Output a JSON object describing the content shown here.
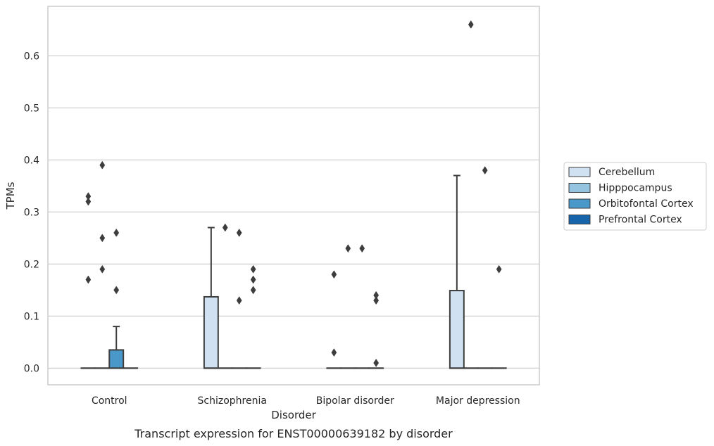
{
  "chart_data": {
    "type": "box",
    "caption": "Transcript expression for ENST00000639182 by disorder",
    "xlabel": "Disorder",
    "ylabel": "TPMs",
    "ylim": [
      -0.032,
      0.695
    ],
    "yticks": [
      "0.0",
      "0.1",
      "0.2",
      "0.3",
      "0.4",
      "0.5",
      "0.6"
    ],
    "ytick_values": [
      0.0,
      0.1,
      0.2,
      0.3,
      0.4,
      0.5,
      0.6
    ],
    "grid": true,
    "legend_position": "right",
    "categories": [
      "Control",
      "Schizophrenia",
      "Bipolar disorder",
      "Major depression"
    ],
    "series": [
      {
        "name": "Cerebellum",
        "color": "#d0e1f2",
        "boxes": [
          {
            "q1": 0,
            "median": 0,
            "q3": 0,
            "whisker_low": 0,
            "whisker_high": 0,
            "outliers": [
              0.17,
              0.32,
              0.33
            ]
          },
          {
            "q1": 0,
            "median": 0,
            "q3": 0.137,
            "whisker_low": 0,
            "whisker_high": 0.27,
            "outliers": []
          },
          {
            "q1": 0,
            "median": 0,
            "q3": 0,
            "whisker_low": 0,
            "whisker_high": 0,
            "outliers": [
              0.03,
              0.18
            ]
          },
          {
            "q1": 0,
            "median": 0,
            "q3": 0.149,
            "whisker_low": 0,
            "whisker_high": 0.37,
            "outliers": []
          }
        ]
      },
      {
        "name": "Hipppocampus",
        "color": "#94c4df",
        "boxes": [
          {
            "q1": 0,
            "median": 0,
            "q3": 0,
            "whisker_low": 0,
            "whisker_high": 0,
            "outliers": [
              0.19,
              0.25,
              0.39
            ]
          },
          {
            "q1": 0,
            "median": 0,
            "q3": 0,
            "whisker_low": 0,
            "whisker_high": 0,
            "outliers": [
              0.27
            ]
          },
          {
            "q1": 0,
            "median": 0,
            "q3": 0,
            "whisker_low": 0,
            "whisker_high": 0,
            "outliers": [
              0.23
            ]
          },
          {
            "q1": 0,
            "median": 0,
            "q3": 0,
            "whisker_low": 0,
            "whisker_high": 0,
            "outliers": [
              0.66
            ]
          }
        ]
      },
      {
        "name": "Orbitofontal Cortex",
        "color": "#4a98c9",
        "boxes": [
          {
            "q1": 0,
            "median": 0,
            "q3": 0.035,
            "whisker_low": 0,
            "whisker_high": 0.08,
            "outliers": [
              0.15,
              0.26
            ]
          },
          {
            "q1": 0,
            "median": 0,
            "q3": 0,
            "whisker_low": 0,
            "whisker_high": 0,
            "outliers": [
              0.13,
              0.26
            ]
          },
          {
            "q1": 0,
            "median": 0,
            "q3": 0,
            "whisker_low": 0,
            "whisker_high": 0,
            "outliers": [
              0.23
            ]
          },
          {
            "q1": 0,
            "median": 0,
            "q3": 0,
            "whisker_low": 0,
            "whisker_high": 0,
            "outliers": [
              0.38
            ]
          }
        ]
      },
      {
        "name": "Prefrontal Cortex",
        "color": "#1764ab",
        "boxes": [
          {
            "q1": 0,
            "median": 0,
            "q3": 0,
            "whisker_low": 0,
            "whisker_high": 0,
            "outliers": []
          },
          {
            "q1": 0,
            "median": 0,
            "q3": 0,
            "whisker_low": 0,
            "whisker_high": 0,
            "outliers": [
              0.15,
              0.17,
              0.19
            ]
          },
          {
            "q1": 0,
            "median": 0,
            "q3": 0,
            "whisker_low": 0,
            "whisker_high": 0,
            "outliers": [
              0.01,
              0.13,
              0.14
            ]
          },
          {
            "q1": 0,
            "median": 0,
            "q3": 0,
            "whisker_low": 0,
            "whisker_high": 0,
            "outliers": [
              0.19
            ]
          }
        ]
      }
    ]
  }
}
